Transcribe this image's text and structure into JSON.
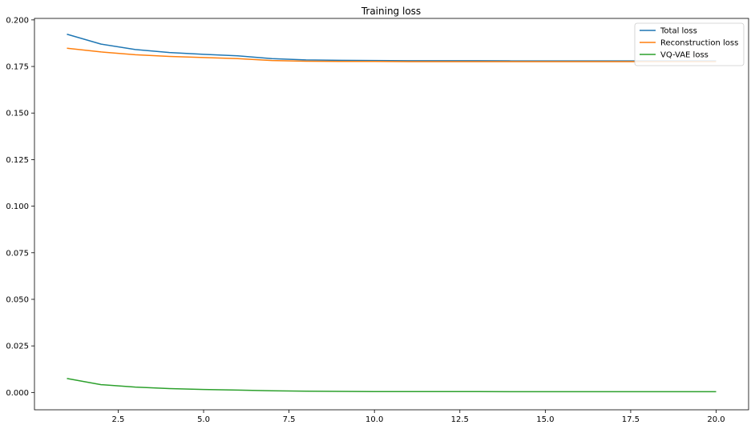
{
  "chart_data": {
    "type": "line",
    "title": "Training loss",
    "xlabel": "",
    "ylabel": "",
    "xlim": [
      0.05,
      20.95
    ],
    "ylim": [
      -0.0093,
      0.2008
    ],
    "xticks": [
      2.5,
      5.0,
      7.5,
      10.0,
      12.5,
      15.0,
      17.5,
      20.0
    ],
    "xtick_labels": [
      "2.5",
      "5.0",
      "7.5",
      "10.0",
      "12.5",
      "15.0",
      "17.5",
      "20.0"
    ],
    "yticks": [
      0.0,
      0.025,
      0.05,
      0.075,
      0.1,
      0.125,
      0.15,
      0.175,
      0.2
    ],
    "ytick_labels": [
      "0.000",
      "0.025",
      "0.050",
      "0.075",
      "0.100",
      "0.125",
      "0.150",
      "0.175",
      "0.200"
    ],
    "grid": false,
    "legend_position": "top-right",
    "x": [
      1,
      2,
      3,
      4,
      5,
      6,
      7,
      8,
      9,
      10,
      11,
      12,
      13,
      14,
      15,
      16,
      17,
      18,
      19,
      20
    ],
    "series": [
      {
        "name": "Total loss",
        "color": "#1f77b4",
        "values": [
          0.1923,
          0.187,
          0.1841,
          0.1825,
          0.1815,
          0.1807,
          0.1792,
          0.1785,
          0.1783,
          0.1782,
          0.1781,
          0.1781,
          0.1781,
          0.178,
          0.178,
          0.178,
          0.178,
          0.178,
          0.178,
          0.178
        ]
      },
      {
        "name": "Reconstruction loss",
        "color": "#ff7f0e",
        "values": [
          0.1848,
          0.1828,
          0.1813,
          0.1804,
          0.1798,
          0.1792,
          0.1782,
          0.1778,
          0.1777,
          0.1777,
          0.1776,
          0.1776,
          0.1776,
          0.1776,
          0.1776,
          0.1776,
          0.1776,
          0.1776,
          0.1776,
          0.1776
        ]
      },
      {
        "name": "VQ-VAE loss",
        "color": "#2ca02c",
        "values": [
          0.0075,
          0.0042,
          0.0029,
          0.0021,
          0.0016,
          0.0013,
          0.0009,
          0.0007,
          0.0006,
          0.0005,
          0.0005,
          0.0005,
          0.0005,
          0.0004,
          0.0004,
          0.0004,
          0.0004,
          0.0004,
          0.0004,
          0.0004
        ]
      }
    ]
  }
}
